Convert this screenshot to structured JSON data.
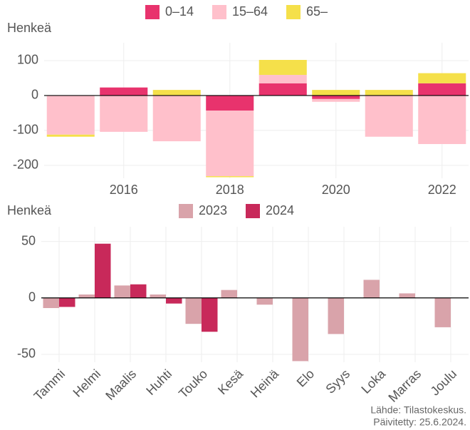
{
  "chart_data": [
    {
      "type": "stacked-bar",
      "y_label": "Henkeä",
      "x": [
        2015,
        2016,
        2017,
        2018,
        2019,
        2020,
        2021,
        2022
      ],
      "xlim": [
        2014.5,
        2022.5
      ],
      "xticks": [
        2016,
        2018,
        2020,
        2022
      ],
      "ylim": [
        -237,
        151
      ],
      "yticks": [
        -200,
        -100,
        0,
        100
      ],
      "grid": true,
      "legend": "top",
      "series": [
        {
          "name": "0–14",
          "color": "#e8336d",
          "values": [
            0,
            23,
            0,
            -43,
            35,
            -10,
            0,
            35
          ]
        },
        {
          "name": "15–64",
          "color": "#ffc0cb",
          "values": [
            -112,
            -104,
            -131,
            -188,
            24,
            -8,
            -118,
            -139
          ]
        },
        {
          "name": "65–",
          "color": "#f5e04a",
          "values": [
            -6,
            0,
            16,
            -3,
            43,
            16,
            16,
            29
          ]
        }
      ]
    },
    {
      "type": "grouped-bar",
      "y_label": "Henkeä",
      "categories": [
        "Tammi",
        "Helmi",
        "Maalis",
        "Huhti",
        "Touko",
        "Kesä",
        "Heinä",
        "Elo",
        "Syys",
        "Loka",
        "Marras",
        "Joulu"
      ],
      "ylim": [
        -57,
        63
      ],
      "yticks": [
        -50,
        0,
        50
      ],
      "grid": true,
      "legend": "top",
      "series": [
        {
          "name": "2023",
          "color": "#d9a3aa",
          "values": [
            -9,
            3,
            11,
            3,
            -23,
            7,
            -6,
            -56,
            -32,
            16,
            4,
            -26
          ]
        },
        {
          "name": "2024",
          "color": "#c8295a",
          "values": [
            -8,
            48,
            12,
            -5,
            -30,
            null,
            null,
            null,
            null,
            null,
            null,
            null
          ]
        }
      ]
    }
  ],
  "footer": {
    "source": "Lähde: Tilastokeskus.",
    "updated": "Päivitetty: 25.6.2024."
  }
}
